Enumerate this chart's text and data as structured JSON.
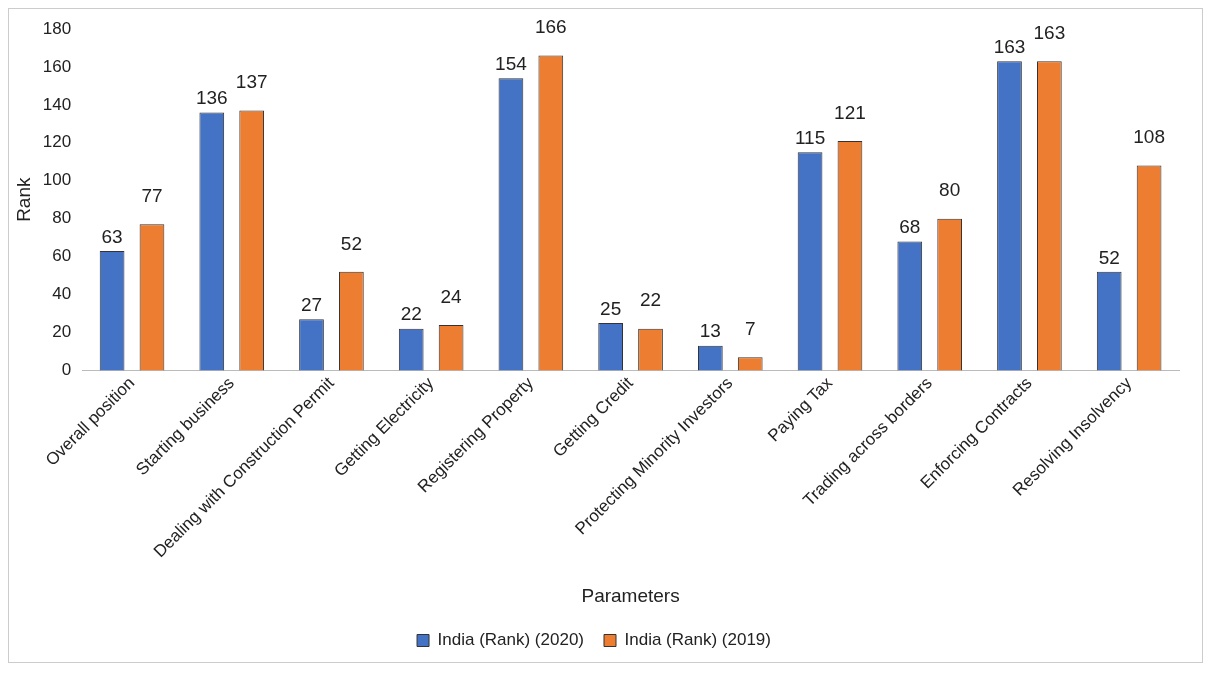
{
  "chart_data": {
    "type": "bar",
    "xlabel": "Parameters",
    "ylabel": "Rank",
    "categories": [
      "Overall position",
      "Starting business",
      "Dealing with Construction Permit",
      "Getting Electricity",
      "Registering Property",
      "Getting Credit",
      "Protecting Minority Investors",
      "Paying Tax",
      "Trading across borders",
      "Enforcing Contracts",
      "Resolving Insolvency"
    ],
    "series": [
      {
        "name": "India (Rank) (2020)",
        "color": "#4472c4",
        "values": [
          63,
          136,
          27,
          22,
          154,
          25,
          13,
          115,
          68,
          163,
          52
        ]
      },
      {
        "name": "India (Rank) (2019)",
        "color": "#ed7d31",
        "values": [
          77,
          137,
          52,
          24,
          166,
          22,
          7,
          121,
          80,
          163,
          108
        ]
      }
    ],
    "ylim": [
      0,
      180
    ],
    "yticks": [
      0,
      20,
      40,
      60,
      80,
      100,
      120,
      140,
      160,
      180
    ],
    "grid": false,
    "legend": "bottom",
    "data_labels": true
  }
}
